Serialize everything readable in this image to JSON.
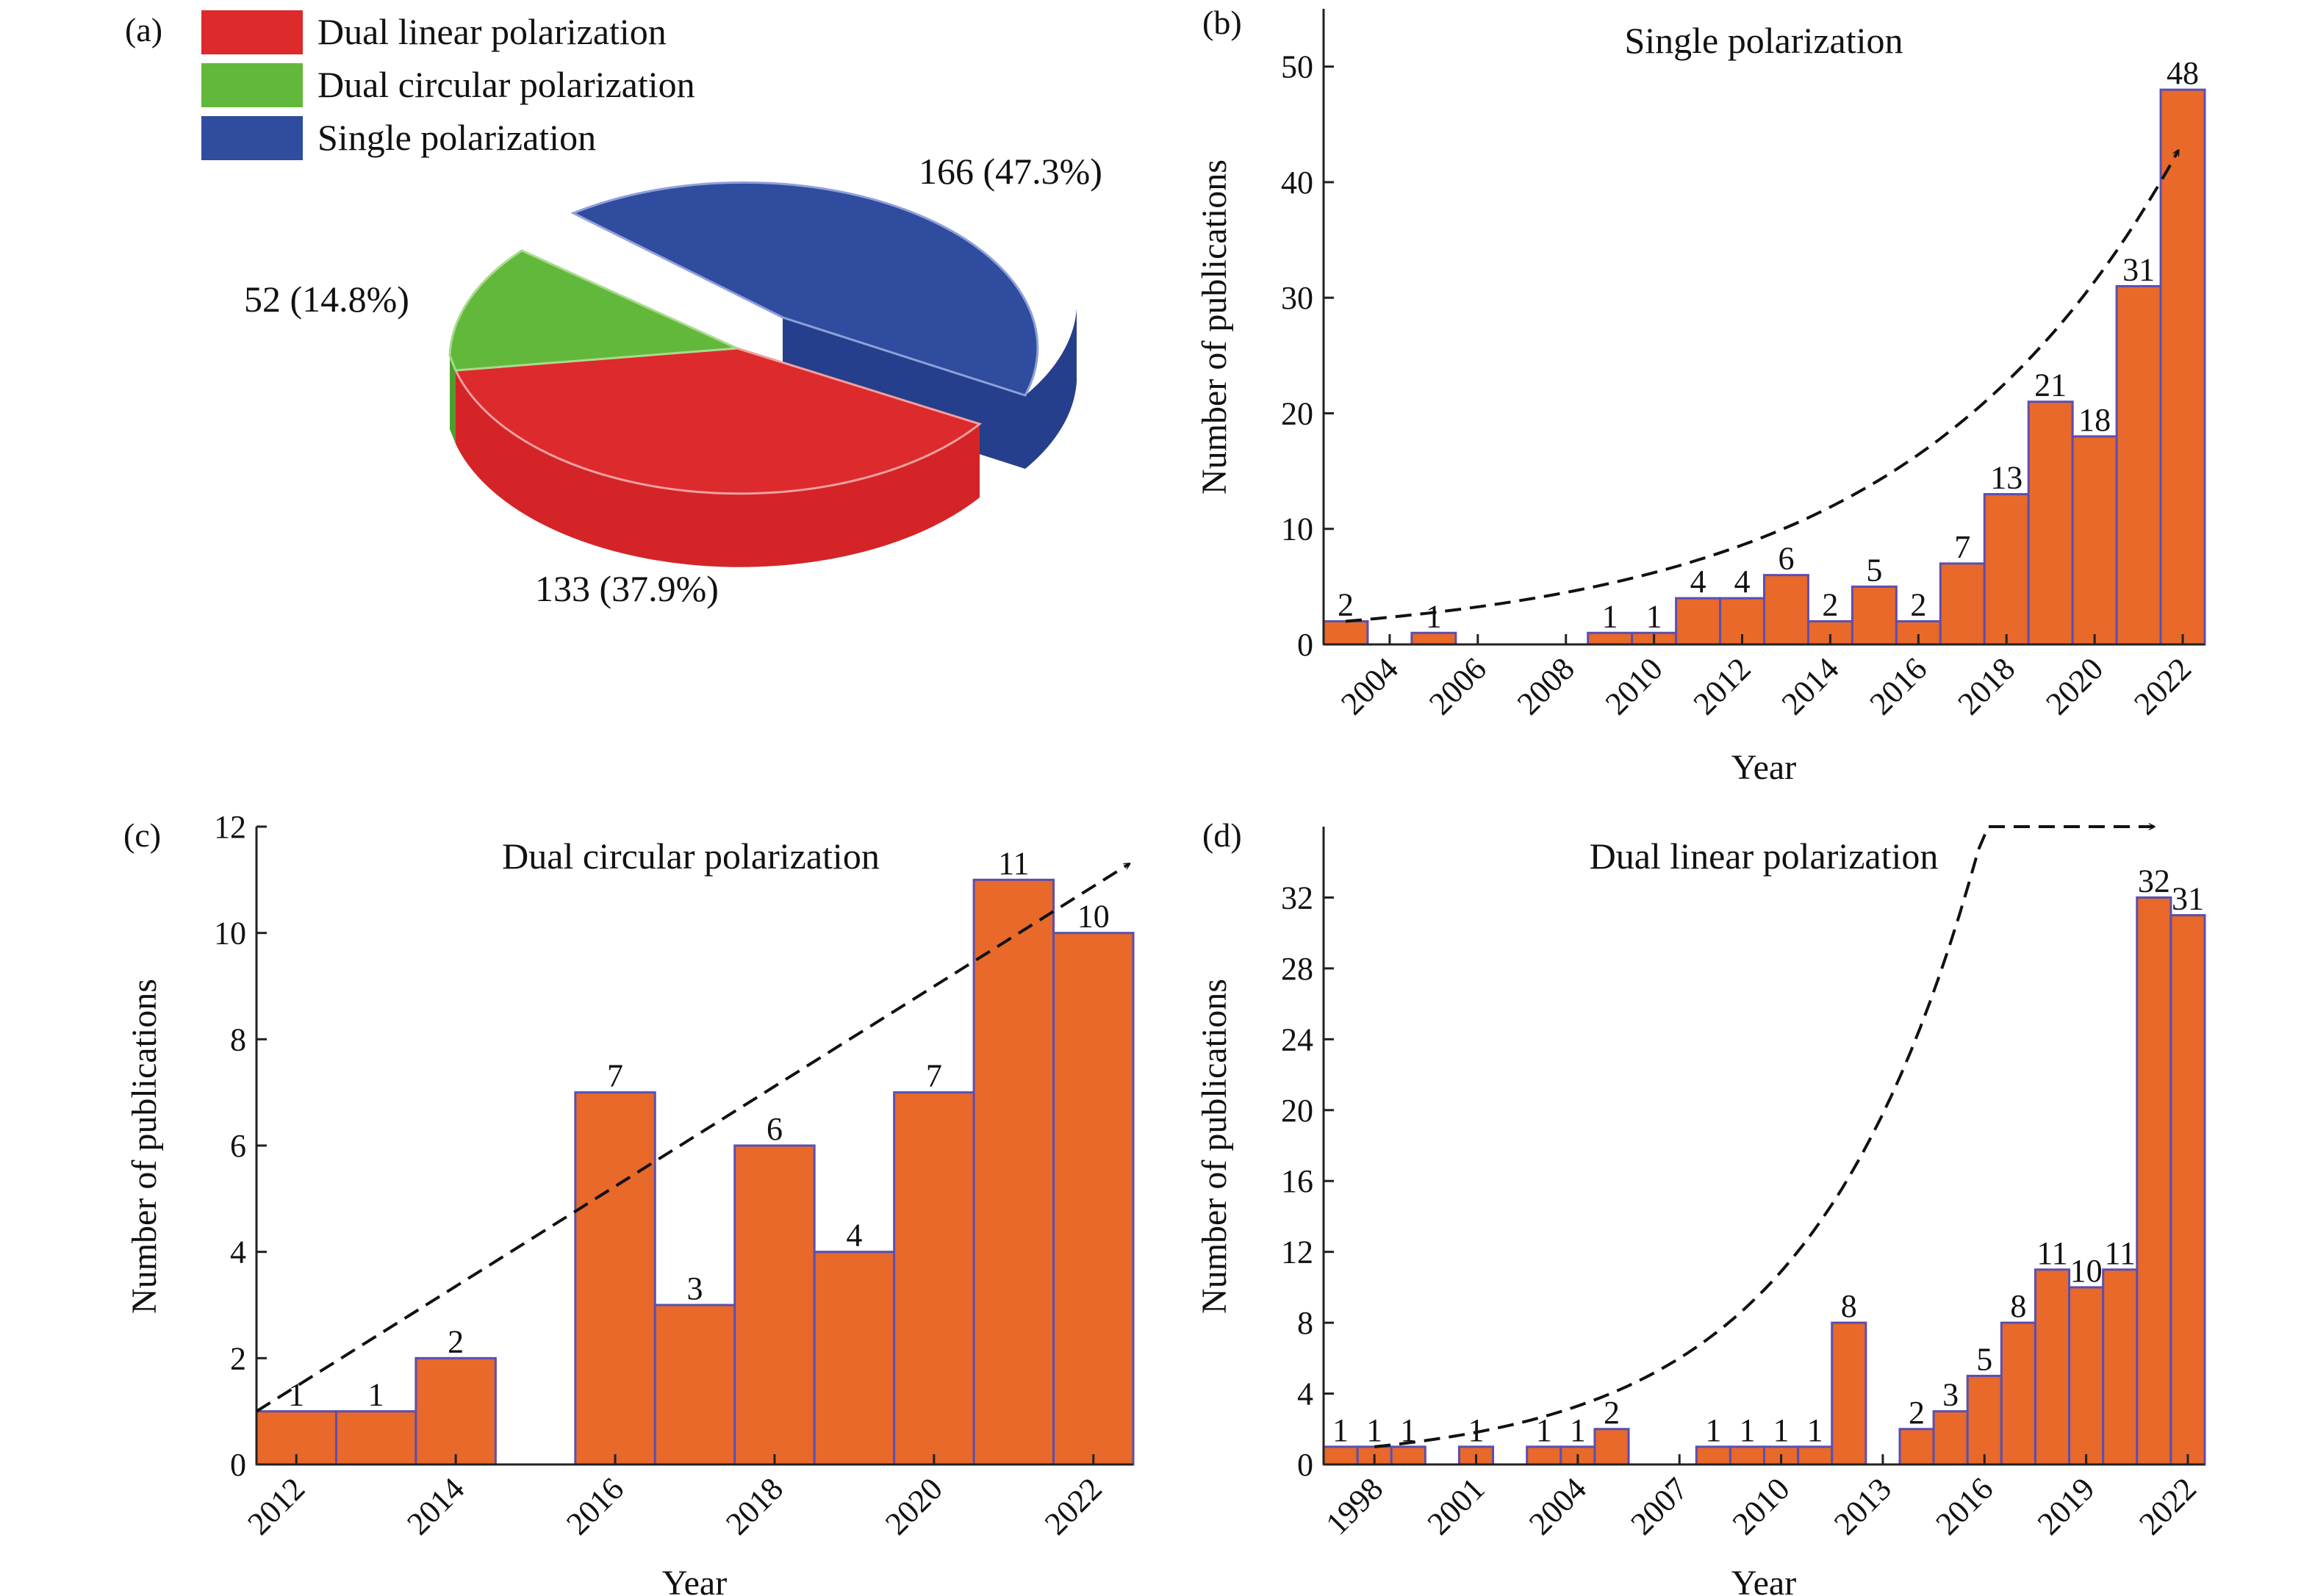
{
  "colors": {
    "bar_fill": "#E8692A",
    "bar_stroke": "#5A4FB0",
    "pie_red": "#DD2A2C",
    "pie_red_side": "#D42428",
    "pie_green": "#62B83A",
    "pie_green_side": "#4E9E2C",
    "pie_blue": "#2F4C9E",
    "pie_blue_side": "#253F8C",
    "axis": "#222222",
    "trend": "#111111"
  },
  "chart_data": [
    {
      "panel_label": "(a)",
      "type": "pie",
      "legend": [
        {
          "label": "Dual linear polarization",
          "color_key": "pie_red"
        },
        {
          "label": "Dual circular polarization",
          "color_key": "pie_green"
        },
        {
          "label": "Single polarization",
          "color_key": "pie_blue"
        }
      ],
      "slices": [
        {
          "name": "Single polarization",
          "value": 166,
          "label": "166 (47.3%)",
          "color_key": "pie_blue"
        },
        {
          "name": "Dual linear polarization",
          "value": 133,
          "label": "133 (37.9%)",
          "color_key": "pie_red"
        },
        {
          "name": "Dual circular polarization",
          "value": 52,
          "label": "52 (14.8%)",
          "color_key": "pie_green"
        }
      ]
    },
    {
      "panel_label": "(b)",
      "type": "bar",
      "title": "Single polarization",
      "xlabel": "Year",
      "ylabel": "Number of publications",
      "x": [
        2003,
        2004,
        2005,
        2006,
        2007,
        2008,
        2009,
        2010,
        2011,
        2012,
        2013,
        2014,
        2015,
        2016,
        2017,
        2018,
        2019,
        2020,
        2021,
        2022
      ],
      "values": [
        2,
        0,
        1,
        0,
        0,
        0,
        1,
        1,
        4,
        4,
        6,
        2,
        5,
        2,
        7,
        13,
        21,
        18,
        31,
        48
      ],
      "value_labels": [
        "2",
        "",
        "1",
        "",
        "",
        "",
        "1",
        "1",
        "4",
        "4",
        "6",
        "2",
        "5",
        "2",
        "7",
        "13",
        "21",
        "18",
        "31",
        "48"
      ],
      "xticks": [
        "2004",
        "2006",
        "2008",
        "2010",
        "2012",
        "2014",
        "2016",
        "2018",
        "2020",
        "2022"
      ],
      "ylim": [
        0,
        55
      ],
      "yticks": [
        "0",
        "10",
        "20",
        "30",
        "40",
        "50"
      ],
      "trend": "exponential dashed arrow"
    },
    {
      "panel_label": "(c)",
      "type": "bar",
      "title": "Dual circular polarization",
      "xlabel": "Year",
      "ylabel": "Number of publications",
      "x": [
        2012,
        2013,
        2014,
        2015,
        2016,
        2017,
        2018,
        2019,
        2020,
        2021,
        2022
      ],
      "values": [
        1,
        1,
        2,
        0,
        7,
        3,
        6,
        4,
        7,
        11,
        10
      ],
      "value_labels": [
        "1",
        "1",
        "2",
        "",
        "7",
        "3",
        "6",
        "4",
        "7",
        "11",
        "10"
      ],
      "xticks": [
        "2012",
        "2014",
        "2016",
        "2018",
        "2020",
        "2022"
      ],
      "ylim": [
        0,
        12
      ],
      "yticks": [
        "0",
        "2",
        "4",
        "6",
        "8",
        "10",
        "12"
      ],
      "trend": "linear dashed arrow"
    },
    {
      "panel_label": "(d)",
      "type": "bar",
      "title": "Dual linear polarization",
      "xlabel": "Year",
      "ylabel": "Number of publications",
      "x": [
        1997,
        1998,
        1999,
        2000,
        2001,
        2002,
        2003,
        2004,
        2005,
        2006,
        2007,
        2008,
        2009,
        2010,
        2011,
        2012,
        2013,
        2014,
        2015,
        2016,
        2017,
        2018,
        2019,
        2020,
        2021,
        2022
      ],
      "values": [
        1,
        1,
        1,
        0,
        1,
        0,
        1,
        1,
        2,
        0,
        0,
        1,
        1,
        1,
        1,
        8,
        0,
        2,
        3,
        5,
        8,
        11,
        10,
        11,
        32,
        31
      ],
      "value_labels": [
        "1",
        "1",
        "1",
        "",
        "1",
        "",
        "1",
        "1",
        "2",
        "",
        "",
        "1",
        "1",
        "1",
        "1",
        "8",
        "",
        "2",
        "3",
        "5",
        "8",
        "11",
        "10",
        "11",
        "32",
        "31"
      ],
      "xticks": [
        "1998",
        "2001",
        "2004",
        "2007",
        "2010",
        "2013",
        "2016",
        "2019",
        "2022"
      ],
      "ylim": [
        0,
        36
      ],
      "yticks": [
        "0",
        "4",
        "8",
        "12",
        "16",
        "20",
        "24",
        "28",
        "32"
      ],
      "trend": "exponential dashed arrow"
    }
  ]
}
